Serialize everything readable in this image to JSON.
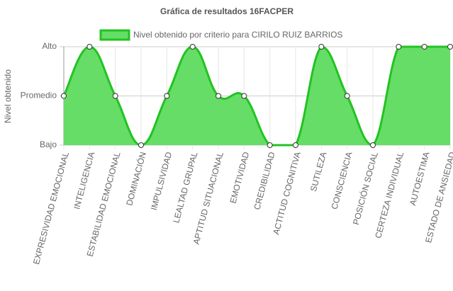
{
  "chart_data": {
    "type": "area",
    "title": "Gráfica de resultados 16FACPER",
    "y_label": "Nivel obtenido",
    "categories": [
      "EXPRESIVIDAD EMOCIONAL",
      "INTELIGENCIA",
      "ESTABILIDAD EMOCIONAL",
      "DOMINACIÓN",
      "IMPULSIVIDAD",
      "LEALTAD GRUPAL",
      "APTITUD SITUACIONAL",
      "EMOTIVIDAD",
      "CREDIBILIDAD",
      "ACTITUD COGNITIVA",
      "SUTILEZA",
      "CONSCIENCIA",
      "POSICIÓN SOCIAL",
      "CERTEZA INDIVIDUAL",
      "AUTOESTIMA",
      "ESTADO DE ANSIEDAD"
    ],
    "series": [
      {
        "name": "Nivel obtenido por criterio para CIRILO RUIZ BARRIOS",
        "color": "#22c322",
        "fill": "#66dd66",
        "values": [
          2,
          3,
          2,
          1,
          2,
          3,
          2,
          2,
          1,
          1,
          3,
          2,
          1,
          3,
          3,
          3
        ]
      }
    ],
    "ylim": [
      1,
      3
    ],
    "yticks": [
      {
        "value": 1,
        "label": "Bajo"
      },
      {
        "value": 2,
        "label": "Promedio"
      },
      {
        "value": 3,
        "label": "Alto"
      }
    ],
    "grid": true,
    "legend": "top"
  }
}
